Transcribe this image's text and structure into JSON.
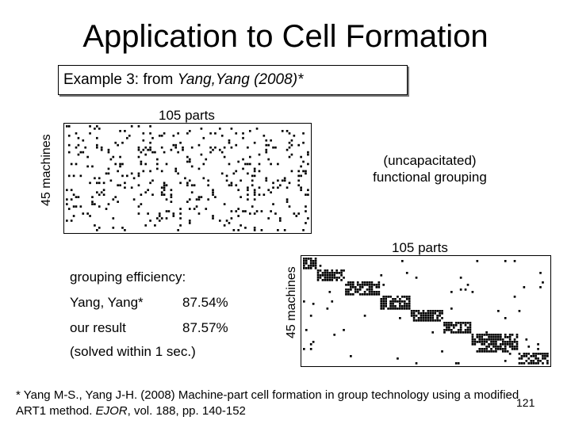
{
  "slide": {
    "title": "Application to Cell Formation",
    "example_label": "Example 3: from ",
    "example_source": "Yang,Yang (2008)*"
  },
  "top_matrix": {
    "parts_label": "105 parts",
    "machines_label": "45 machines",
    "note_line1": "(uncapacitated)",
    "note_line2": "functional grouping",
    "rows": 45,
    "cols": 105,
    "density": 0.09
  },
  "bottom_matrix": {
    "parts_label": "105 parts",
    "machines_label": "45 machines",
    "rows": 45,
    "cols": 105,
    "blocks": [
      {
        "row_start": 0,
        "row_end": 5,
        "col_start": 0,
        "col_end": 6
      },
      {
        "row_start": 5,
        "row_end": 10,
        "col_start": 6,
        "col_end": 18
      },
      {
        "row_start": 10,
        "row_end": 16,
        "col_start": 18,
        "col_end": 33
      },
      {
        "row_start": 16,
        "row_end": 22,
        "col_start": 33,
        "col_end": 46
      },
      {
        "row_start": 22,
        "row_end": 27,
        "col_start": 46,
        "col_end": 60
      },
      {
        "row_start": 27,
        "row_end": 32,
        "col_start": 60,
        "col_end": 72
      },
      {
        "row_start": 32,
        "row_end": 40,
        "col_start": 72,
        "col_end": 92
      },
      {
        "row_start": 40,
        "row_end": 45,
        "col_start": 92,
        "col_end": 105
      }
    ],
    "block_density": 0.75,
    "noise_density": 0.015
  },
  "efficiency": {
    "heading": "grouping efficiency:",
    "rows": [
      {
        "name": "Yang, Yang*",
        "value": "87.54%"
      },
      {
        "name": "our result",
        "value": "87.57%"
      }
    ],
    "note": "(solved within 1 sec.)"
  },
  "footnote": {
    "text1": "* Yang M-S., Yang J-H. (2008) Machine-part cell formation in group technology using a modified",
    "text2": "ART1 method. ",
    "journal": "EJOR",
    "text3": ", vol. 188, pp. 140-152"
  },
  "page_number": "121"
}
